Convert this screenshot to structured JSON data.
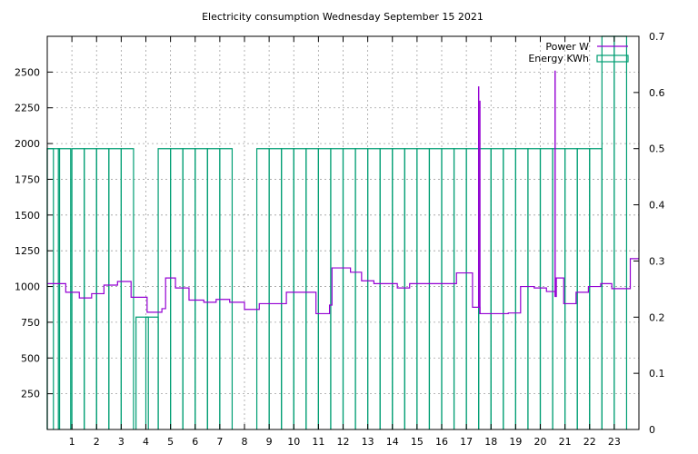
{
  "chart_data": {
    "type": "line",
    "title": "Electricity consumption Wednesday September 15 2021",
    "xlabel": "",
    "ylabel": "",
    "xlim": [
      0,
      24
    ],
    "ylim": [
      0,
      2750
    ],
    "y2lim": [
      0,
      0.7
    ],
    "x_ticks": [
      1,
      2,
      3,
      4,
      5,
      6,
      7,
      8,
      9,
      10,
      11,
      12,
      13,
      14,
      15,
      16,
      17,
      18,
      19,
      20,
      21,
      22,
      23
    ],
    "y_ticks": [
      250,
      500,
      750,
      1000,
      1250,
      1500,
      1750,
      2000,
      2250,
      2500
    ],
    "y2_ticks": [
      0,
      0.1,
      0.2,
      0.3,
      0.4,
      0.5,
      0.6,
      0.7
    ],
    "grid": true,
    "legend_position": "top-right",
    "colors": {
      "power": "#9400d3",
      "energy": "#009e73",
      "grid": "#a0a0a0",
      "axis": "#000000"
    },
    "series": [
      {
        "name": "Power W",
        "axis": "y1",
        "style": "step",
        "points": [
          [
            0.0,
            1020
          ],
          [
            0.75,
            960
          ],
          [
            1.3,
            920
          ],
          [
            1.8,
            950
          ],
          [
            2.3,
            1010
          ],
          [
            2.85,
            1035
          ],
          [
            3.4,
            925
          ],
          [
            4.05,
            820
          ],
          [
            4.65,
            845
          ],
          [
            4.8,
            1060
          ],
          [
            5.2,
            990
          ],
          [
            5.75,
            905
          ],
          [
            6.35,
            890
          ],
          [
            6.85,
            910
          ],
          [
            7.4,
            890
          ],
          [
            8.0,
            840
          ],
          [
            8.6,
            880
          ],
          [
            9.7,
            960
          ],
          [
            10.9,
            810
          ],
          [
            11.45,
            870
          ],
          [
            11.55,
            1130
          ],
          [
            12.3,
            1100
          ],
          [
            12.75,
            1040
          ],
          [
            13.25,
            1020
          ],
          [
            14.2,
            990
          ],
          [
            14.7,
            1020
          ],
          [
            16.6,
            1095
          ],
          [
            17.25,
            855
          ],
          [
            17.55,
            810
          ],
          [
            18.7,
            815
          ],
          [
            19.2,
            1000
          ],
          [
            19.75,
            990
          ],
          [
            20.25,
            965
          ],
          [
            20.6,
            930
          ],
          [
            20.65,
            1060
          ],
          [
            20.95,
            880
          ],
          [
            21.45,
            960
          ],
          [
            21.95,
            1000
          ],
          [
            22.45,
            1020
          ],
          [
            22.9,
            985
          ],
          [
            23.65,
            1195
          ],
          [
            24.0,
            1195
          ]
        ],
        "spikes": [
          [
            17.5,
            2400
          ],
          [
            17.55,
            2300
          ],
          [
            20.6,
            2510
          ]
        ]
      },
      {
        "name": "Energy KWh",
        "axis": "y2",
        "style": "impulses",
        "x": [
          0,
          0.25,
          0.7,
          1.25,
          1.75,
          2.25,
          2.75,
          3.25,
          3.85,
          4.25,
          4.75,
          5.25,
          5.75,
          6.25,
          6.75,
          7.25,
          8.75,
          9.25,
          9.75,
          10.25,
          10.75,
          11.25,
          11.75,
          12.25,
          12.75,
          13.25,
          13.75,
          14.25,
          14.75,
          15.25,
          15.75,
          16.25,
          16.75,
          17.25,
          17.75,
          18.25,
          18.75,
          19.25,
          19.75,
          20.25,
          20.75,
          21.25,
          21.75,
          22.25,
          22.75,
          23.25
        ],
        "values": [
          0.5,
          0.5,
          0.5,
          0.5,
          0.5,
          0.5,
          0.5,
          0.5,
          0.2,
          0.2,
          0.5,
          0.5,
          0.5,
          0.5,
          0.5,
          0.5,
          0.5,
          0.5,
          0.5,
          0.5,
          0.5,
          0.5,
          0.5,
          0.5,
          0.5,
          0.5,
          0.5,
          0.5,
          0.5,
          0.5,
          0.5,
          0.5,
          0.5,
          0.5,
          0.5,
          0.5,
          0.5,
          0.5,
          0.5,
          0.5,
          0.5,
          0.5,
          0.5,
          0.5,
          0.7,
          0.7
        ]
      }
    ]
  }
}
